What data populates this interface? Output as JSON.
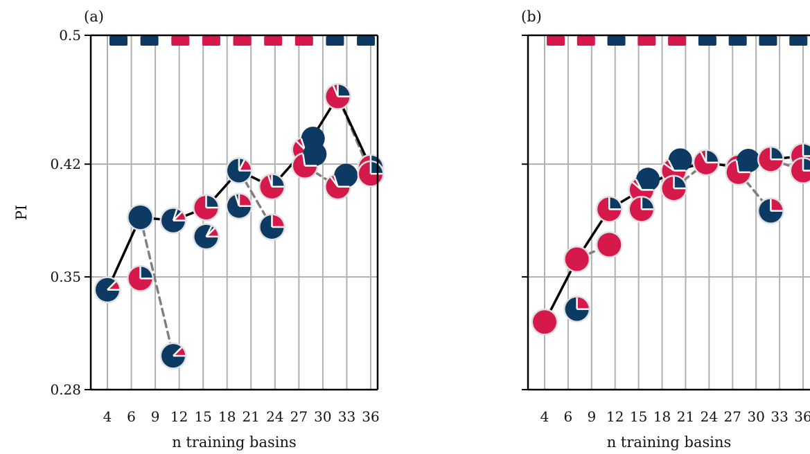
{
  "chart_data": [
    {
      "type": "scatter",
      "panel_label": "(a)",
      "xlabel": "n training basins",
      "ylabel": "PI",
      "x_tick_labels": [
        "4",
        "6",
        "9",
        "12",
        "15",
        "18",
        "21",
        "24",
        "27",
        "30",
        "33",
        "36"
      ],
      "y_ticks": [
        0.28,
        0.35,
        0.42,
        0.5
      ],
      "y_tick_labels": [
        "0.28",
        "0.35",
        "0.42",
        "0.5"
      ],
      "ylim": [
        0.28,
        0.5
      ],
      "grid": true,
      "colors": {
        "navy": "#0d3a63",
        "crimson": "#d5194a"
      },
      "top_markers": [
        "navy",
        "navy",
        "crimson",
        "crimson",
        "crimson",
        "crimson",
        "crimson",
        "navy",
        "navy"
      ],
      "points": [
        {
          "x": 1,
          "y": 0.342,
          "fill": "navy",
          "frac": 0.25
        },
        {
          "x": 2,
          "y": 0.387,
          "fill": "navy",
          "frac": 0.0
        },
        {
          "x": 2,
          "y": 0.349,
          "fill": "crimson",
          "frac": 0.5
        },
        {
          "x": 3,
          "y": 0.301,
          "fill": "navy",
          "frac": 0.25
        },
        {
          "x": 3,
          "y": 0.385,
          "fill": "navy",
          "frac": 0.25,
          "dfrac": 0.3
        },
        {
          "x": 4,
          "y": 0.393,
          "fill": "crimson",
          "frac": 0.5
        },
        {
          "x": 4,
          "y": 0.375,
          "fill": "navy",
          "frac": 0.25,
          "dfrac": 0.2
        },
        {
          "x": 5,
          "y": 0.416,
          "fill": "navy",
          "frac": 0.35,
          "dfrac": 0.3
        },
        {
          "x": 5,
          "y": 0.394,
          "fill": "navy",
          "frac": 0.5,
          "dfrac": 0.2
        },
        {
          "x": 6,
          "y": 0.406,
          "fill": "crimson",
          "frac": 0.5,
          "dfrac": 0.2
        },
        {
          "x": 6,
          "y": 0.381,
          "fill": "navy",
          "frac": 0.5
        },
        {
          "x": 7,
          "y": 0.429,
          "fill": "crimson",
          "frac": 0.6,
          "dfrac": 0.3
        },
        {
          "x": 7,
          "y": 0.419,
          "fill": "crimson",
          "frac": 0.55
        },
        {
          "x": 8,
          "y": 0.462,
          "fill": "crimson",
          "frac": 0.5,
          "dfrac": 0.25
        },
        {
          "x": 8,
          "y": 0.406,
          "fill": "crimson",
          "frac": 0.6,
          "dfrac": 0.2
        },
        {
          "x": 9,
          "y": 0.418,
          "fill": "crimson",
          "frac": 0.5
        },
        {
          "x": 9,
          "y": 0.414,
          "fill": "crimson",
          "frac": 0.5
        }
      ],
      "solid_line": [
        [
          1,
          0.342
        ],
        [
          2,
          0.387
        ],
        [
          3,
          0.385
        ],
        [
          4,
          0.393
        ],
        [
          5,
          0.416
        ],
        [
          6,
          0.406
        ],
        [
          7,
          0.429
        ],
        [
          8,
          0.462
        ],
        [
          9,
          0.418
        ]
      ],
      "dashed_line": [
        [
          2,
          0.387
        ],
        [
          3,
          0.301
        ]
      ],
      "dashed_line_2": [
        [
          5,
          0.416
        ],
        [
          6,
          0.381
        ]
      ],
      "dashed_line_3": [
        [
          7,
          0.419
        ],
        [
          8,
          0.406
        ]
      ],
      "dashed_line_4": [
        [
          8,
          0.462
        ],
        [
          9,
          0.414
        ]
      ]
    },
    {
      "type": "scatter",
      "panel_label": "(b)",
      "xlabel": "n training basins",
      "ylabel": "",
      "x_tick_labels": [
        "4",
        "6",
        "9",
        "12",
        "15",
        "18",
        "21",
        "24",
        "27",
        "30",
        "33",
        "36"
      ],
      "y_ticks": [
        0.28,
        0.35,
        0.42,
        0.5
      ],
      "ylim": [
        0.28,
        0.5
      ],
      "grid": true,
      "colors": {
        "navy": "#0d3a63",
        "crimson": "#d5194a"
      },
      "top_markers": [
        "crimson",
        "crimson",
        "navy",
        "crimson",
        "crimson",
        "navy",
        "navy",
        "navy",
        "navy"
      ],
      "points": [
        {
          "x": 1,
          "y": 0.322,
          "fill": "crimson",
          "frac": 1.0
        },
        {
          "x": 2,
          "y": 0.361,
          "fill": "crimson",
          "frac": 1.0
        },
        {
          "x": 2,
          "y": 0.33,
          "fill": "navy",
          "frac": 0.5
        },
        {
          "x": 3,
          "y": 0.392,
          "fill": "crimson",
          "frac": 0.5
        },
        {
          "x": 3,
          "y": 0.37,
          "fill": "crimson",
          "frac": 1.0
        },
        {
          "x": 4,
          "y": 0.404,
          "fill": "crimson",
          "frac": 0.65,
          "dfrac": 0.25
        },
        {
          "x": 4,
          "y": 0.392,
          "fill": "crimson",
          "frac": 0.5
        },
        {
          "x": 5,
          "y": 0.416,
          "fill": "crimson",
          "frac": 0.65,
          "dfrac": 0.3
        },
        {
          "x": 5,
          "y": 0.405,
          "fill": "crimson",
          "frac": 0.5
        },
        {
          "x": 6,
          "y": 0.421,
          "fill": "crimson",
          "frac": 0.5,
          "dfrac": 0.3
        },
        {
          "x": 7,
          "y": 0.418,
          "fill": "crimson",
          "frac": 0.5
        },
        {
          "x": 7,
          "y": 0.415,
          "fill": "crimson",
          "frac": 0.55
        },
        {
          "x": 8,
          "y": 0.423,
          "fill": "crimson",
          "frac": 0.5
        },
        {
          "x": 8,
          "y": 0.391,
          "fill": "navy",
          "frac": 0.5
        },
        {
          "x": 9,
          "y": 0.425,
          "fill": "crimson",
          "frac": 0.5
        },
        {
          "x": 9,
          "y": 0.416,
          "fill": "crimson",
          "frac": 0.5
        }
      ],
      "solid_line": [
        [
          1,
          0.322
        ],
        [
          2,
          0.361
        ],
        [
          3,
          0.392
        ],
        [
          4,
          0.404
        ],
        [
          5,
          0.416
        ],
        [
          6,
          0.421
        ],
        [
          7,
          0.418
        ],
        [
          8,
          0.423
        ],
        [
          9,
          0.425
        ]
      ],
      "dashed_line": [
        [
          2,
          0.361
        ],
        [
          3,
          0.37
        ]
      ],
      "dashed_line_2": [
        [
          7,
          0.415
        ],
        [
          8,
          0.391
        ]
      ],
      "dashed_line_3": [
        [
          5,
          0.405
        ],
        [
          6,
          0.421
        ]
      ],
      "dashed_line_4": [
        [
          8,
          0.423
        ],
        [
          9,
          0.416
        ]
      ]
    }
  ]
}
